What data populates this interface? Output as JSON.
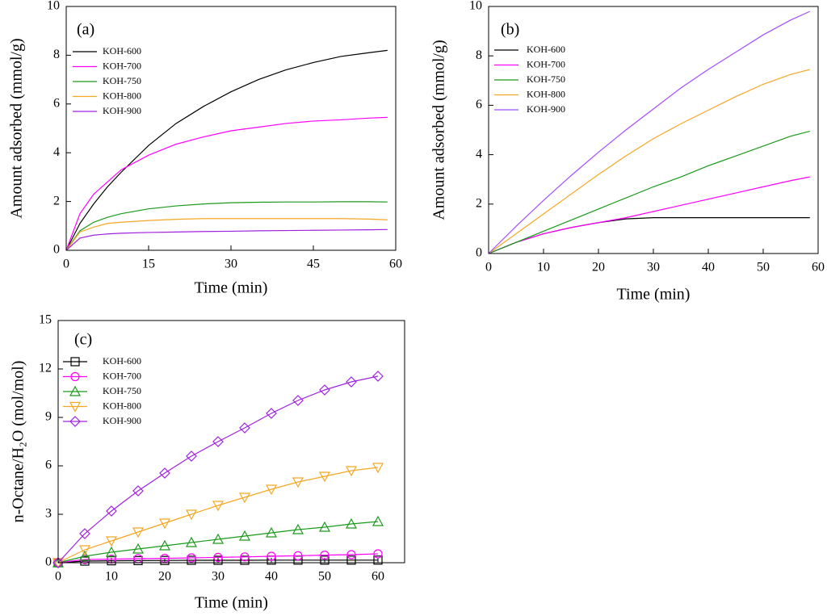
{
  "chart_data": [
    {
      "type": "line",
      "panel_label": "(a)",
      "x_label": "Time (min)",
      "y_label": "Amount adsorbed (mmol/g)",
      "x": [
        0,
        2.5,
        5,
        7.5,
        10,
        15,
        20,
        25,
        30,
        35,
        40,
        45,
        50,
        55,
        58.5
      ],
      "xlim": [
        0,
        60
      ],
      "xticks": [
        0,
        15,
        30,
        45,
        60
      ],
      "ylim": [
        0,
        10
      ],
      "yticks": [
        0,
        2,
        4,
        6,
        8,
        10
      ],
      "series": [
        {
          "name": "KOH-600",
          "color": "#000000",
          "values": [
            0,
            1.1,
            1.9,
            2.6,
            3.2,
            4.3,
            5.2,
            5.9,
            6.5,
            7.0,
            7.4,
            7.7,
            7.95,
            8.1,
            8.2
          ]
        },
        {
          "name": "KOH-700",
          "color": "#ff00ff",
          "values": [
            0,
            1.5,
            2.3,
            2.8,
            3.3,
            3.9,
            4.35,
            4.65,
            4.9,
            5.05,
            5.2,
            5.3,
            5.35,
            5.42,
            5.45
          ]
        },
        {
          "name": "KOH-750",
          "color": "#1a9a1a",
          "values": [
            0,
            0.8,
            1.15,
            1.35,
            1.5,
            1.7,
            1.82,
            1.9,
            1.95,
            1.97,
            1.98,
            1.98,
            1.99,
            1.99,
            1.98
          ]
        },
        {
          "name": "KOH-800",
          "color": "#f5a623",
          "values": [
            0,
            0.75,
            0.95,
            1.1,
            1.15,
            1.22,
            1.27,
            1.3,
            1.3,
            1.3,
            1.3,
            1.3,
            1.3,
            1.28,
            1.25
          ]
        },
        {
          "name": "KOH-900",
          "color": "#a020e0",
          "values": [
            0,
            0.5,
            0.62,
            0.67,
            0.7,
            0.73,
            0.75,
            0.77,
            0.78,
            0.8,
            0.81,
            0.82,
            0.83,
            0.84,
            0.85
          ]
        }
      ]
    },
    {
      "type": "line",
      "panel_label": "(b)",
      "x_label": "Time (min)",
      "y_label": "Amount adsorbed (mmol/g)",
      "x": [
        0,
        5,
        10,
        15,
        20,
        25,
        30,
        35,
        40,
        45,
        50,
        55,
        58.5
      ],
      "xlim": [
        0,
        60
      ],
      "xticks": [
        0,
        10,
        20,
        30,
        40,
        50,
        60
      ],
      "ylim": [
        0,
        10
      ],
      "yticks": [
        0,
        2,
        4,
        6,
        8,
        10
      ],
      "series": [
        {
          "name": "KOH-600",
          "color": "#000000",
          "values": [
            0,
            0.45,
            0.8,
            1.05,
            1.25,
            1.4,
            1.45,
            1.45,
            1.45,
            1.45,
            1.45,
            1.45,
            1.45
          ]
        },
        {
          "name": "KOH-700",
          "color": "#ff00ff",
          "values": [
            0,
            0.45,
            0.8,
            1.05,
            1.25,
            1.45,
            1.7,
            1.95,
            2.2,
            2.45,
            2.7,
            2.95,
            3.1
          ]
        },
        {
          "name": "KOH-750",
          "color": "#1a9a1a",
          "values": [
            0,
            0.45,
            0.9,
            1.35,
            1.8,
            2.25,
            2.7,
            3.1,
            3.55,
            3.95,
            4.35,
            4.75,
            4.95
          ]
        },
        {
          "name": "KOH-800",
          "color": "#f5a623",
          "values": [
            0,
            0.8,
            1.6,
            2.4,
            3.2,
            3.95,
            4.65,
            5.25,
            5.8,
            6.35,
            6.85,
            7.25,
            7.45
          ]
        },
        {
          "name": "KOH-900",
          "color": "#a64dff",
          "values": [
            0,
            1.1,
            2.15,
            3.15,
            4.1,
            5.0,
            5.85,
            6.7,
            7.45,
            8.15,
            8.85,
            9.45,
            9.8
          ]
        }
      ]
    },
    {
      "type": "line",
      "panel_label": "(c)",
      "x_label": "Time (min)",
      "y_label": "n-Octane/H₂O (mol/mol)",
      "x": [
        0,
        5,
        10,
        15,
        20,
        25,
        30,
        35,
        40,
        45,
        50,
        55,
        60
      ],
      "xlim": [
        0,
        65
      ],
      "xticks": [
        0,
        10,
        20,
        30,
        40,
        50,
        60
      ],
      "ylim": [
        0,
        15
      ],
      "yticks": [
        0,
        3,
        6,
        9,
        12,
        15
      ],
      "series": [
        {
          "name": "KOH-600",
          "color": "#000000",
          "marker": "square",
          "values": [
            0,
            0.1,
            0.12,
            0.13,
            0.14,
            0.15,
            0.15,
            0.15,
            0.16,
            0.16,
            0.16,
            0.16,
            0.16
          ]
        },
        {
          "name": "KOH-700",
          "color": "#ff00ff",
          "marker": "circle",
          "values": [
            0,
            0.2,
            0.22,
            0.25,
            0.27,
            0.3,
            0.33,
            0.36,
            0.4,
            0.43,
            0.47,
            0.5,
            0.55
          ]
        },
        {
          "name": "KOH-750",
          "color": "#1a9a1a",
          "marker": "triangle-up",
          "values": [
            0,
            0.4,
            0.65,
            0.85,
            1.05,
            1.25,
            1.45,
            1.65,
            1.85,
            2.05,
            2.2,
            2.4,
            2.55
          ]
        },
        {
          "name": "KOH-800",
          "color": "#f5a623",
          "marker": "triangle-down",
          "values": [
            0,
            0.8,
            1.35,
            1.9,
            2.45,
            3.0,
            3.55,
            4.05,
            4.55,
            5.0,
            5.35,
            5.7,
            5.9
          ]
        },
        {
          "name": "KOH-900",
          "color": "#a020e0",
          "marker": "diamond",
          "values": [
            0,
            1.8,
            3.2,
            4.45,
            5.55,
            6.6,
            7.5,
            8.35,
            9.25,
            10.05,
            10.7,
            11.2,
            11.55
          ]
        }
      ]
    }
  ]
}
